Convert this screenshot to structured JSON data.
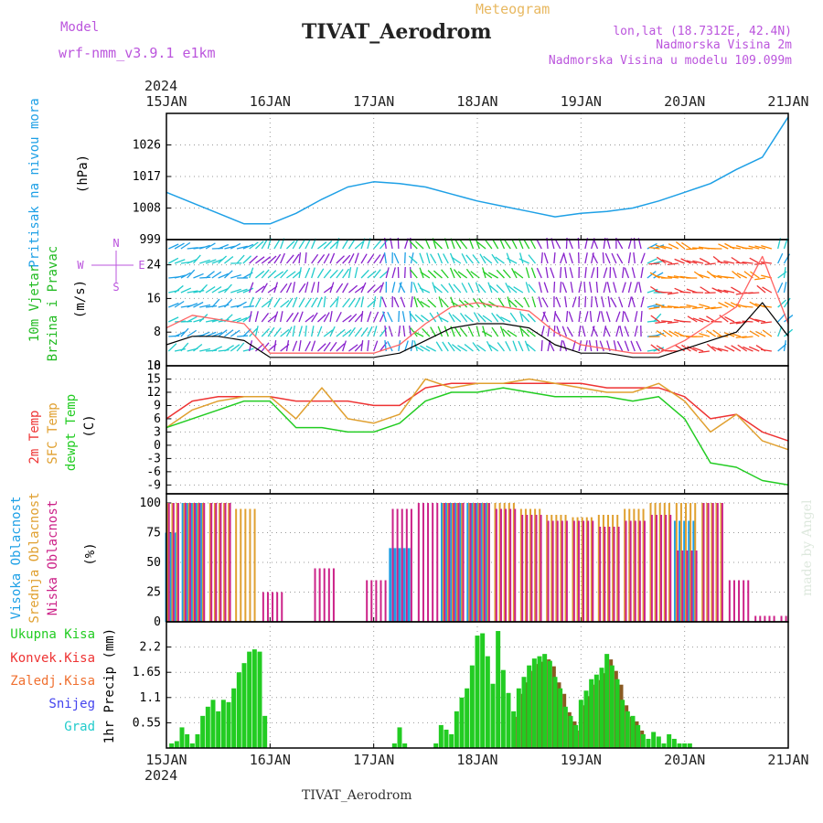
{
  "header": {
    "model_label": "Model",
    "model_name": "wrf-nmm_v3.9.1 e1km",
    "meteogram_label": "Meteogram",
    "station_title": "TIVAT_Aerodrom",
    "lonlat": "lon,lat (18.7312E, 42.4N)",
    "altitude": "Nadmorska Visina 2m",
    "model_altitude": "Nadmorska Visina u modelu 109.099m",
    "year": "2024",
    "footer_title": "TIVAT_Aerodrom",
    "credit": "made by Angel"
  },
  "colors": {
    "pressure": "#1ea0e6",
    "wind_speed": "#000000",
    "gust": "#ff6464",
    "temp2m": "#ee3333",
    "sfc_temp": "#e0a030",
    "dewpt": "#22cc22",
    "cloud_high": "#1ea0e6",
    "cloud_mid": "#e0a030",
    "cloud_low": "#cc2288",
    "precip_total": "#22cc22",
    "precip_conv": "#ee3333",
    "wind_label": "#22bb22",
    "compass": "#bb55dd",
    "purple_text": "#bb55dd",
    "meteogram_text": "#e8b860"
  },
  "chart_data": [
    {
      "type": "line",
      "panel": "pressure",
      "ylabel_main": "Pritisak na nivou mora",
      "ylabel_unit": "(hPa)",
      "xticks": [
        "15JAN",
        "16JAN",
        "17JAN",
        "18JAN",
        "19JAN",
        "20JAN",
        "21JAN"
      ],
      "yticks": [
        "999",
        "1008",
        "1017",
        "1026"
      ],
      "ylim": [
        999,
        1035
      ],
      "x_days": [
        0,
        0.25,
        0.5,
        0.75,
        1.0,
        1.25,
        1.5,
        1.75,
        2.0,
        2.25,
        2.5,
        2.75,
        3.0,
        3.25,
        3.5,
        3.75,
        4.0,
        4.25,
        4.5,
        4.75,
        5.0,
        5.25,
        5.5,
        5.75,
        6.0
      ],
      "values": [
        1012.5,
        1009.5,
        1006.5,
        1003.5,
        1003.5,
        1006.5,
        1010.5,
        1014.0,
        1015.5,
        1015.0,
        1014.0,
        1012.0,
        1010.0,
        1008.5,
        1007.0,
        1005.5,
        1006.5,
        1007.0,
        1008.0,
        1010.0,
        1012.5,
        1015.0,
        1019.0,
        1022.5,
        1034.0
      ]
    },
    {
      "type": "line",
      "panel": "wind",
      "ylabel_main": "10m Vjetar",
      "ylabel_sub": "Brzina i Pravac",
      "ylabel_unit": "(m/s)",
      "compass": [
        "N",
        "W",
        "E",
        "S"
      ],
      "yticks": [
        "0",
        "8",
        "16",
        "24"
      ],
      "ylim": [
        0,
        30
      ],
      "x_days": [
        0,
        0.25,
        0.5,
        0.75,
        1.0,
        1.25,
        1.5,
        1.75,
        2.0,
        2.25,
        2.5,
        2.75,
        3.0,
        3.25,
        3.5,
        3.75,
        4.0,
        4.25,
        4.5,
        4.75,
        5.0,
        5.25,
        5.5,
        5.75,
        6.0
      ],
      "series": [
        {
          "name": "speed",
          "values": [
            5,
            7,
            7,
            6,
            2,
            2,
            2,
            2,
            2,
            3,
            6,
            9,
            10,
            10,
            9,
            5,
            3,
            3,
            2,
            2,
            4,
            6,
            8,
            15,
            7
          ]
        },
        {
          "name": "gust",
          "values": [
            9,
            12,
            11,
            10,
            3,
            3,
            3,
            3,
            3,
            5,
            10,
            14,
            15,
            14,
            13,
            8,
            5,
            4,
            3,
            3,
            6,
            10,
            14,
            26,
            10
          ]
        }
      ]
    },
    {
      "type": "line",
      "panel": "temperature",
      "ylabel_1": "2m Temp",
      "ylabel_2": "SFC Temp",
      "ylabel_3": "dewpt Temp",
      "ylabel_unit": "(C)",
      "yticks": [
        "-9",
        "-6",
        "-3",
        "0",
        "3",
        "6",
        "9",
        "12",
        "15",
        "18"
      ],
      "ylim": [
        -11,
        18
      ],
      "x_days": [
        0,
        0.25,
        0.5,
        0.75,
        1.0,
        1.25,
        1.5,
        1.75,
        2.0,
        2.25,
        2.5,
        2.75,
        3.0,
        3.25,
        3.5,
        3.75,
        4.0,
        4.25,
        4.5,
        4.75,
        5.0,
        5.25,
        5.5,
        5.75,
        6.0
      ],
      "series": [
        {
          "name": "2m Temp",
          "values": [
            6,
            10,
            11,
            11,
            11,
            10,
            10,
            10,
            9,
            9,
            13,
            14,
            14,
            14,
            14,
            14,
            14,
            13,
            13,
            13,
            11,
            6,
            7,
            3,
            1
          ]
        },
        {
          "name": "SFC Temp",
          "values": [
            4,
            8,
            10,
            11,
            11,
            6,
            13,
            6,
            5,
            7,
            15,
            13,
            14,
            14,
            15,
            14,
            13,
            12,
            12,
            14,
            10,
            3,
            7,
            1,
            -1
          ]
        },
        {
          "name": "dewpt Temp",
          "values": [
            4,
            6,
            8,
            10,
            10,
            4,
            4,
            3,
            3,
            5,
            10,
            12,
            12,
            13,
            12,
            11,
            11,
            11,
            10,
            11,
            6,
            -4,
            -5,
            -8,
            -9
          ]
        }
      ]
    },
    {
      "type": "bar",
      "panel": "clouds",
      "ylabel_1": "Visoka Oblacnost",
      "ylabel_2": "Srednja Oblacnost",
      "ylabel_3": "Niska Oblacnost",
      "ylabel_unit": "(%)",
      "yticks": [
        "0",
        "25",
        "50",
        "75",
        "100"
      ],
      "ylim": [
        0,
        100
      ],
      "x_days": [
        0,
        0.25,
        0.5,
        0.75,
        1.0,
        1.25,
        1.5,
        1.75,
        2.0,
        2.25,
        2.5,
        2.75,
        3.0,
        3.25,
        3.5,
        3.75,
        4.0,
        4.25,
        4.5,
        4.75,
        5.0,
        5.25,
        5.5,
        5.75,
        6.0
      ],
      "series": [
        {
          "name": "high",
          "values": [
            75,
            100,
            0,
            0,
            0,
            0,
            0,
            0,
            0,
            62,
            0,
            100,
            100,
            0,
            0,
            0,
            0,
            0,
            0,
            0,
            85,
            0,
            0,
            0,
            0
          ]
        },
        {
          "name": "mid",
          "values": [
            100,
            100,
            100,
            95,
            0,
            0,
            0,
            0,
            0,
            0,
            0,
            100,
            100,
            100,
            95,
            90,
            88,
            90,
            95,
            100,
            100,
            100,
            0,
            0,
            0
          ]
        },
        {
          "name": "low",
          "values": [
            100,
            100,
            100,
            0,
            25,
            0,
            45,
            0,
            35,
            95,
            100,
            100,
            100,
            95,
            90,
            85,
            85,
            80,
            85,
            90,
            60,
            100,
            35,
            5,
            5
          ]
        }
      ]
    },
    {
      "type": "bar",
      "panel": "precipitation",
      "ylabel_unit": "1hr Precip (mm)",
      "legend": [
        "Ukupna Kisa",
        "Konvek.Kisa",
        "Zaledj.Kisa",
        "Snijeg",
        "Grad"
      ],
      "xticks": [
        "15JAN",
        "16JAN",
        "17JAN",
        "18JAN",
        "19JAN",
        "20JAN",
        "21JAN"
      ],
      "yticks": [
        "0.55",
        "1.1",
        "1.65",
        "2.2"
      ],
      "ylim": [
        0,
        2.75
      ],
      "x_days": [
        0.05,
        0.1,
        0.15,
        0.2,
        0.25,
        0.3,
        0.35,
        0.4,
        0.45,
        0.5,
        0.55,
        0.6,
        0.65,
        0.7,
        0.75,
        0.8,
        0.85,
        0.9,
        0.95,
        2.2,
        2.25,
        2.3,
        2.6,
        2.65,
        2.7,
        2.75,
        2.8,
        2.85,
        2.9,
        2.95,
        3.0,
        3.05,
        3.1,
        3.15,
        3.2,
        3.25,
        3.3,
        3.35,
        3.4,
        3.45,
        3.5,
        3.55,
        3.6,
        3.65,
        3.7,
        3.75,
        3.8,
        3.85,
        3.9,
        3.95,
        4.0,
        4.05,
        4.1,
        4.15,
        4.2,
        4.25,
        4.3,
        4.35,
        4.4,
        4.45,
        4.5,
        4.55,
        4.6,
        4.65,
        4.7,
        4.75,
        4.8,
        4.85,
        4.9,
        4.95,
        5.0,
        5.05
      ],
      "values": [
        0.1,
        0.15,
        0.45,
        0.3,
        0.1,
        0.3,
        0.7,
        0.9,
        1.05,
        0.8,
        1.05,
        1.0,
        1.3,
        1.65,
        1.85,
        2.1,
        2.15,
        2.1,
        0.7,
        0.1,
        0.45,
        0.1,
        0.1,
        0.5,
        0.4,
        0.3,
        0.8,
        1.1,
        1.3,
        1.8,
        2.45,
        2.5,
        2.0,
        1.4,
        2.55,
        1.7,
        1.2,
        0.8,
        1.3,
        1.55,
        1.8,
        1.95,
        2.0,
        2.05,
        1.9,
        1.55,
        1.3,
        0.9,
        0.7,
        0.5,
        1.05,
        1.25,
        1.5,
        1.6,
        1.75,
        2.05,
        1.8,
        1.5,
        1.05,
        0.8,
        0.7,
        0.5,
        0.3,
        0.2,
        0.35,
        0.25,
        0.1,
        0.3,
        0.2,
        0.1,
        0.1,
        0.1
      ]
    }
  ]
}
